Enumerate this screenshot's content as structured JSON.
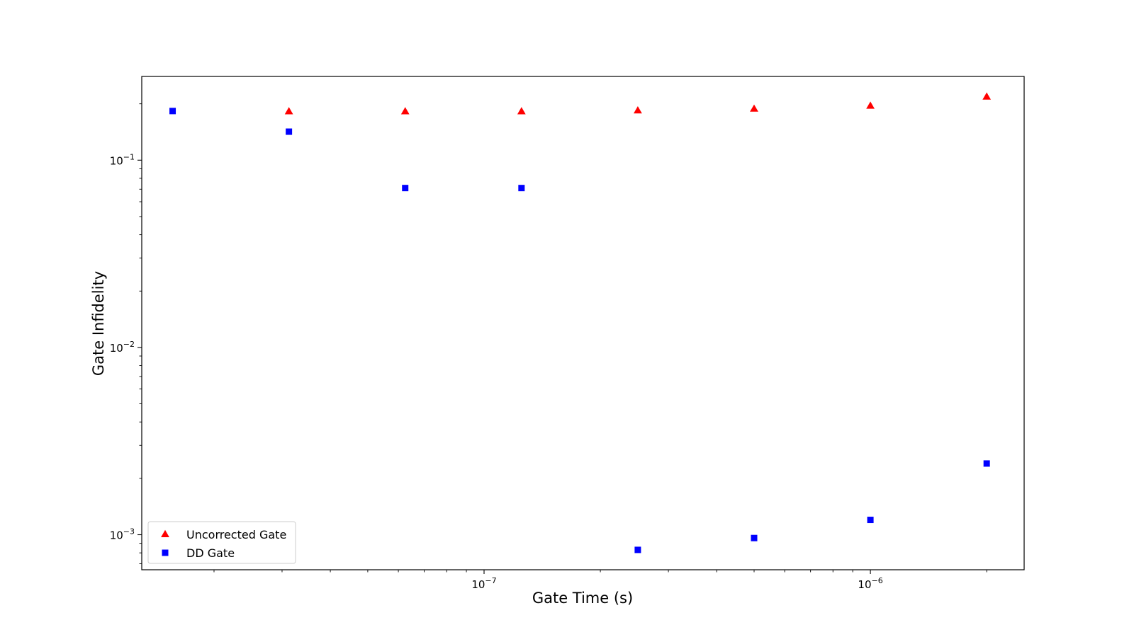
{
  "chart_data": {
    "type": "scatter",
    "title": "",
    "xlabel": "Gate Time (s)",
    "ylabel": "Gate Infidelity",
    "xscale": "log",
    "yscale": "log",
    "xlim": [
      1.3e-08,
      2.5e-06
    ],
    "ylim": [
      0.00065,
      0.28
    ],
    "grid": false,
    "legend_location": "lower-left",
    "x": [
      1.5625e-08,
      3.125e-08,
      6.25e-08,
      1.25e-07,
      2.5e-07,
      5e-07,
      1e-06,
      2e-06
    ],
    "x_ticks": [
      {
        "value": 1e-07,
        "base": "10",
        "exp": "−7"
      },
      {
        "value": 1e-06,
        "base": "10",
        "exp": "−6"
      }
    ],
    "y_ticks": [
      {
        "value": 0.1,
        "base": "10",
        "exp": "−1"
      },
      {
        "value": 0.01,
        "base": "10",
        "exp": "−2"
      },
      {
        "value": 0.001,
        "base": "10",
        "exp": "−3"
      }
    ],
    "series": [
      {
        "name": "Uncorrected Gate",
        "marker": "triangle",
        "color": "#ff0000",
        "x": [
          3.125e-08,
          6.25e-08,
          1.25e-07,
          2.5e-07,
          5e-07,
          1e-06,
          2e-06
        ],
        "values": [
          0.182,
          0.182,
          0.182,
          0.184,
          0.188,
          0.195,
          0.218
        ]
      },
      {
        "name": "DD Gate",
        "marker": "square",
        "color": "#0000ff",
        "x": [
          1.5625e-08,
          3.125e-08,
          6.25e-08,
          1.25e-07,
          2.5e-07,
          5e-07,
          1e-06,
          2e-06
        ],
        "values": [
          0.183,
          0.142,
          0.071,
          0.071,
          0.00083,
          0.00096,
          0.0012,
          0.0024
        ]
      }
    ]
  }
}
